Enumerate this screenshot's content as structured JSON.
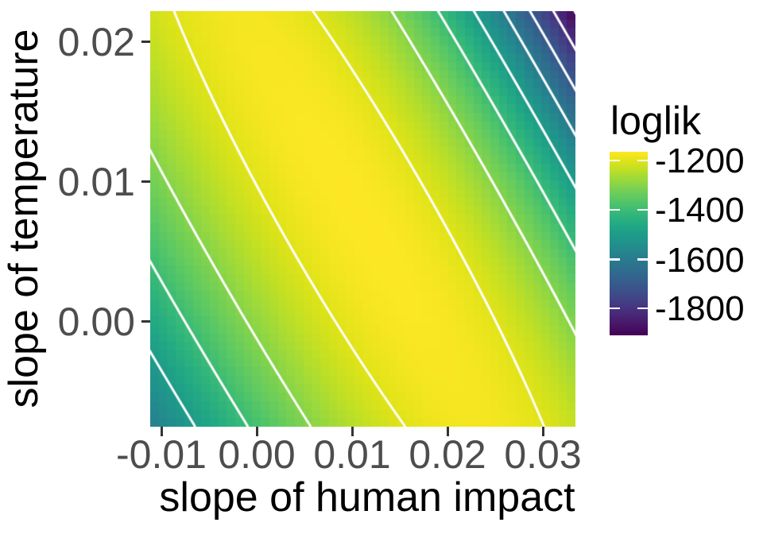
{
  "page": {
    "background": "#ffffff"
  },
  "chart_data": {
    "type": "heatmap",
    "subtype": "likelihood-surface-raster-with-contours",
    "title": "",
    "x_axis": {
      "label": "slope of human impact",
      "range": [
        -0.0112,
        0.0334
      ],
      "ticks": [
        {
          "value": -0.01,
          "label": "-0.01"
        },
        {
          "value": 0.0,
          "label": "0.00"
        },
        {
          "value": 0.01,
          "label": "0.01"
        },
        {
          "value": 0.02,
          "label": "0.02"
        },
        {
          "value": 0.03,
          "label": "0.03"
        }
      ]
    },
    "y_axis": {
      "label": "slope of temperature",
      "range": [
        -0.0075,
        0.0222
      ],
      "ticks": [
        {
          "value": 0.02,
          "label": "0.02"
        },
        {
          "value": 0.01,
          "label": "0.01"
        },
        {
          "value": 0.0,
          "label": "0.00"
        }
      ]
    },
    "legend": {
      "title": "loglik",
      "domain": [
        -1906,
        -1164
      ],
      "ticks": [
        {
          "value": -1200,
          "label": "-1200"
        },
        {
          "value": -1400,
          "label": "-1400"
        },
        {
          "value": -1600,
          "label": "-1600"
        },
        {
          "value": -1800,
          "label": "-1800"
        }
      ]
    },
    "surface": {
      "description": "loglik(x,y) = peak - k_along*(y-peak_y)^2 - k_across*u^2*(1+q*u), u = x - (ridge_x_intercept + ridge_slope*y)",
      "peak_loglik": -1164,
      "peak_y": 0.00735,
      "ridge_x_intercept": 0.01692,
      "ridge_slope": -0.8168,
      "k_along": 50000,
      "k_across": 470000,
      "q_pos": 8.5,
      "q_neg": 7.0
    },
    "raster": {
      "cols": 50,
      "rows": 49
    },
    "contours": {
      "levels": [
        -1900,
        -1800,
        -1700,
        -1600,
        -1500,
        -1400,
        -1300,
        -1200
      ],
      "color": "#ffffff",
      "width": 3
    },
    "colormap": {
      "name": "viridis",
      "stops": [
        [
          0.0,
          "#440154"
        ],
        [
          0.05,
          "#471365"
        ],
        [
          0.1,
          "#482475"
        ],
        [
          0.15,
          "#463480"
        ],
        [
          0.2,
          "#414487"
        ],
        [
          0.25,
          "#3b528b"
        ],
        [
          0.3,
          "#355f8d"
        ],
        [
          0.35,
          "#2f6c8e"
        ],
        [
          0.4,
          "#2a788e"
        ],
        [
          0.45,
          "#25848e"
        ],
        [
          0.5,
          "#21918c"
        ],
        [
          0.55,
          "#1e9c89"
        ],
        [
          0.6,
          "#22a884"
        ],
        [
          0.65,
          "#2fb47c"
        ],
        [
          0.7,
          "#44bf70"
        ],
        [
          0.75,
          "#5ec962"
        ],
        [
          0.8,
          "#7ad151"
        ],
        [
          0.85,
          "#9bd93c"
        ],
        [
          0.9,
          "#bddf26"
        ],
        [
          0.95,
          "#dfe318"
        ],
        [
          1.0,
          "#fde725"
        ]
      ]
    },
    "styles": {
      "axis_text_color": "#4d4d4d",
      "axis_title_color": "#000000",
      "tick_color": "#333333",
      "contour_color": "#ffffff"
    }
  }
}
